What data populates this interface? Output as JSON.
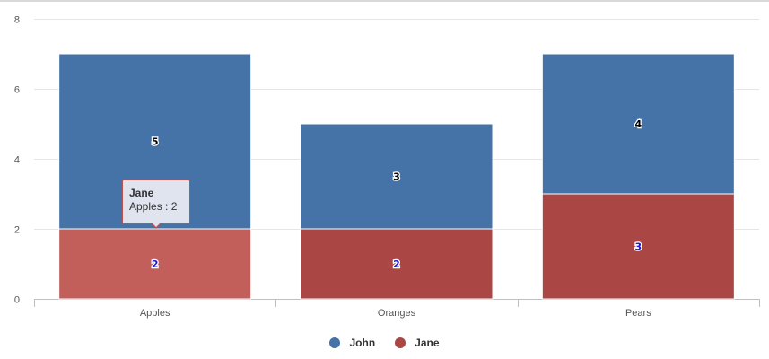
{
  "chart_data": {
    "type": "bar",
    "stacked": true,
    "categories": [
      "Apples",
      "Oranges",
      "Pears"
    ],
    "series": [
      {
        "name": "John",
        "values": [
          5,
          3,
          4
        ],
        "color": "#4572a7"
      },
      {
        "name": "Jane",
        "values": [
          2,
          2,
          3
        ],
        "color": "#aa4643"
      }
    ],
    "ylim": [
      0,
      8
    ],
    "yticks": [
      0,
      2,
      4,
      6,
      8
    ],
    "grid": true,
    "legend_position": "bottom-center",
    "hover_color": "#c25f5b",
    "tooltip": {
      "series": "Jane",
      "text": "Apples : 2",
      "category_index": 0
    }
  }
}
